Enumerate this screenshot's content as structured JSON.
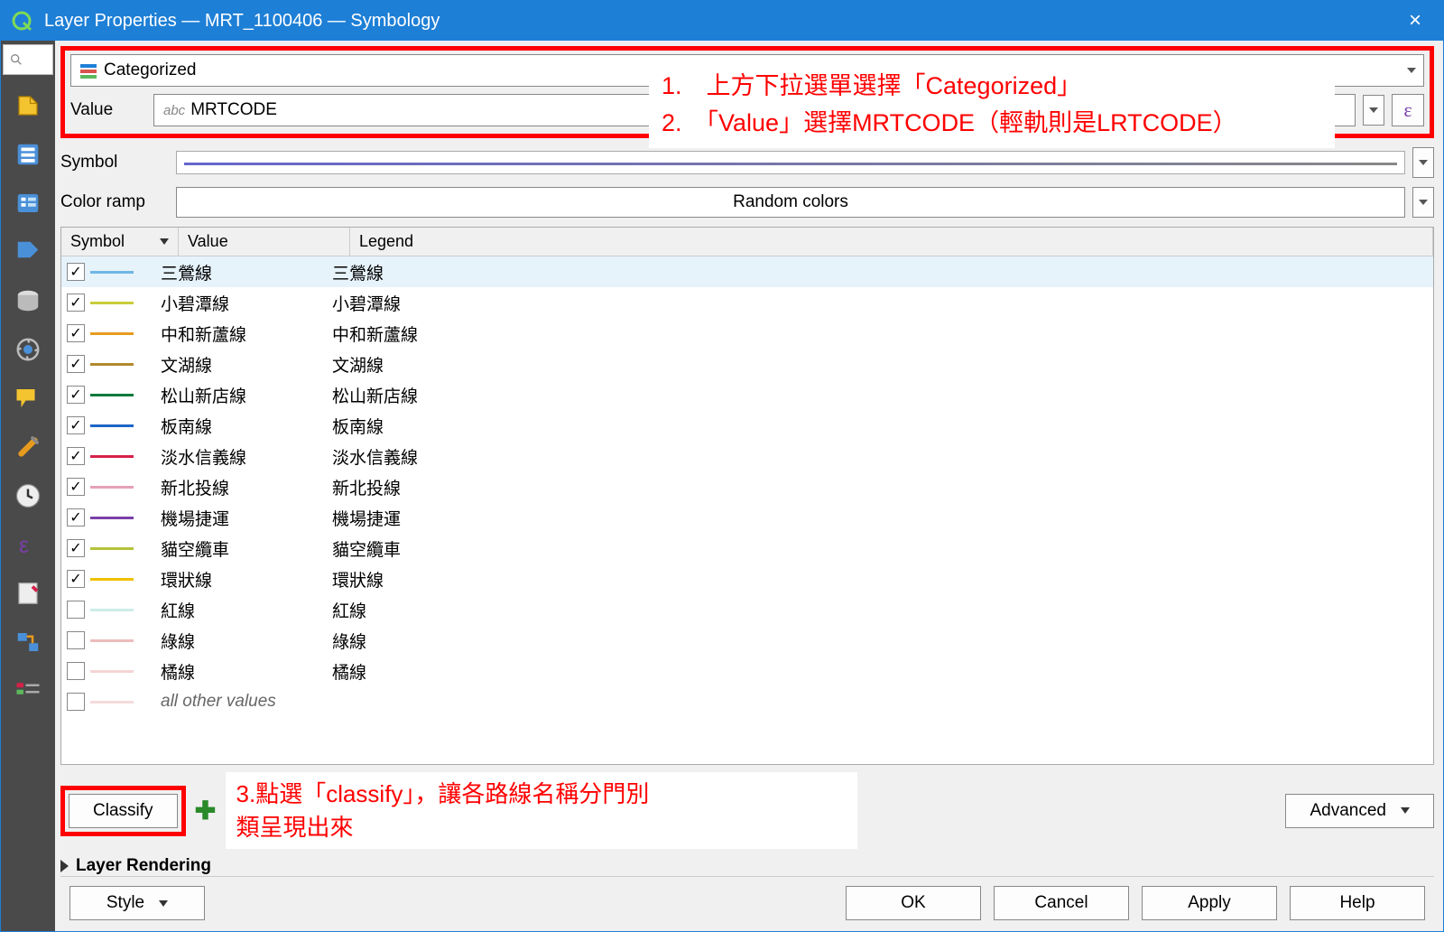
{
  "window": {
    "title": "Layer Properties — MRT_1100406 — Symbology",
    "close_label": "×"
  },
  "renderer": {
    "label": "Categorized"
  },
  "value_field": {
    "label": "Value",
    "prefix": "abc",
    "value": "MRTCODE",
    "epsilon": "ε"
  },
  "symbol_field": {
    "label": "Symbol"
  },
  "color_ramp": {
    "label": "Color ramp",
    "value": "Random colors"
  },
  "columns": {
    "symbol": "Symbol",
    "value": "Value",
    "legend": "Legend"
  },
  "rows": [
    {
      "checked": true,
      "color": "#6fb7e6",
      "value": "三鶯線",
      "legend": "三鶯線",
      "selected": true,
      "light": false
    },
    {
      "checked": true,
      "color": "#c9cc3a",
      "value": "小碧潭線",
      "legend": "小碧潭線",
      "light": false
    },
    {
      "checked": true,
      "color": "#e69b1e",
      "value": "中和新蘆線",
      "legend": "中和新蘆線",
      "light": false
    },
    {
      "checked": true,
      "color": "#b08a2e",
      "value": "文湖線",
      "legend": "文湖線",
      "light": false
    },
    {
      "checked": true,
      "color": "#0a7a3a",
      "value": "松山新店線",
      "legend": "松山新店線",
      "light": false
    },
    {
      "checked": true,
      "color": "#1e64c8",
      "value": "板南線",
      "legend": "板南線",
      "light": false
    },
    {
      "checked": true,
      "color": "#d62049",
      "value": "淡水信義線",
      "legend": "淡水信義線",
      "light": false
    },
    {
      "checked": true,
      "color": "#e6a0b8",
      "value": "新北投線",
      "legend": "新北投線",
      "light": false
    },
    {
      "checked": true,
      "color": "#7a3fa8",
      "value": "機場捷運",
      "legend": "機場捷運",
      "light": false
    },
    {
      "checked": true,
      "color": "#b5c23a",
      "value": "貓空纜車",
      "legend": "貓空纜車",
      "light": false
    },
    {
      "checked": true,
      "color": "#f0c000",
      "value": "環狀線",
      "legend": "環狀線",
      "light": false
    },
    {
      "checked": false,
      "color": "#8fd6c8",
      "value": "紅線",
      "legend": "紅線",
      "light": true
    },
    {
      "checked": false,
      "color": "#d66b6b",
      "value": "綠線",
      "legend": "綠線",
      "light": true
    },
    {
      "checked": false,
      "color": "#e6a0a0",
      "value": "橘線",
      "legend": "橘線",
      "light": true
    },
    {
      "checked": false,
      "color": "#e6b0b0",
      "value": "all other values",
      "legend": "",
      "light": true,
      "italic": true
    }
  ],
  "buttons": {
    "classify": "Classify",
    "advanced": "Advanced",
    "layer_rendering": "Layer Rendering",
    "style": "Style",
    "ok": "OK",
    "cancel": "Cancel",
    "apply": "Apply",
    "help": "Help"
  },
  "annotations": {
    "a1_line1": "1.　上方下拉選單選擇「Categorized」",
    "a1_line2": "2.　「Value」選擇MRTCODE（輕軌則是LRTCODE）",
    "a2_line1": "3.點選「classify」，讓各路線名稱分門別",
    "a2_line2": "類呈現出來"
  }
}
